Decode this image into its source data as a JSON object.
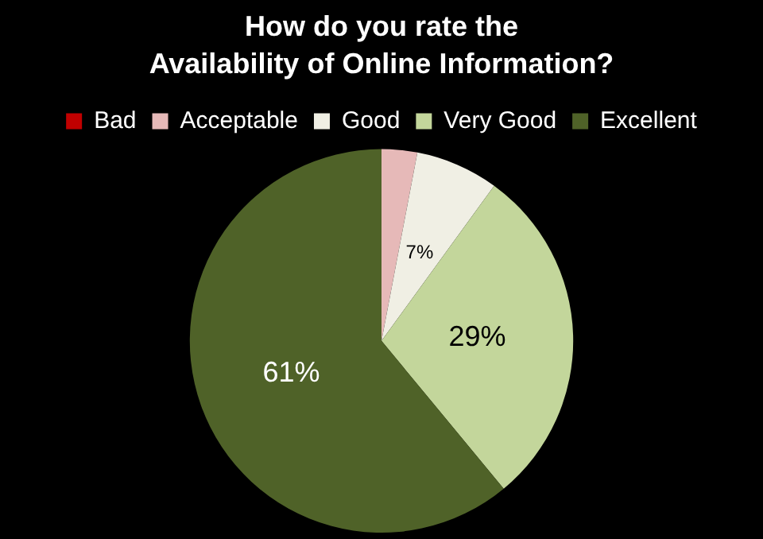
{
  "chart_data": {
    "type": "pie",
    "title": "How do you rate the\nAvailability of Online Information?",
    "categories": [
      "Bad",
      "Acceptable",
      "Good",
      "Very Good",
      "Excellent"
    ],
    "values": [
      0,
      3,
      7,
      29,
      61
    ],
    "value_labels": [
      null,
      null,
      "7%",
      "29%",
      "61%"
    ],
    "colors": [
      "#c00000",
      "#e6b9b8",
      "#f0efe4",
      "#c3d69b",
      "#4f6228"
    ],
    "legend": "top"
  }
}
